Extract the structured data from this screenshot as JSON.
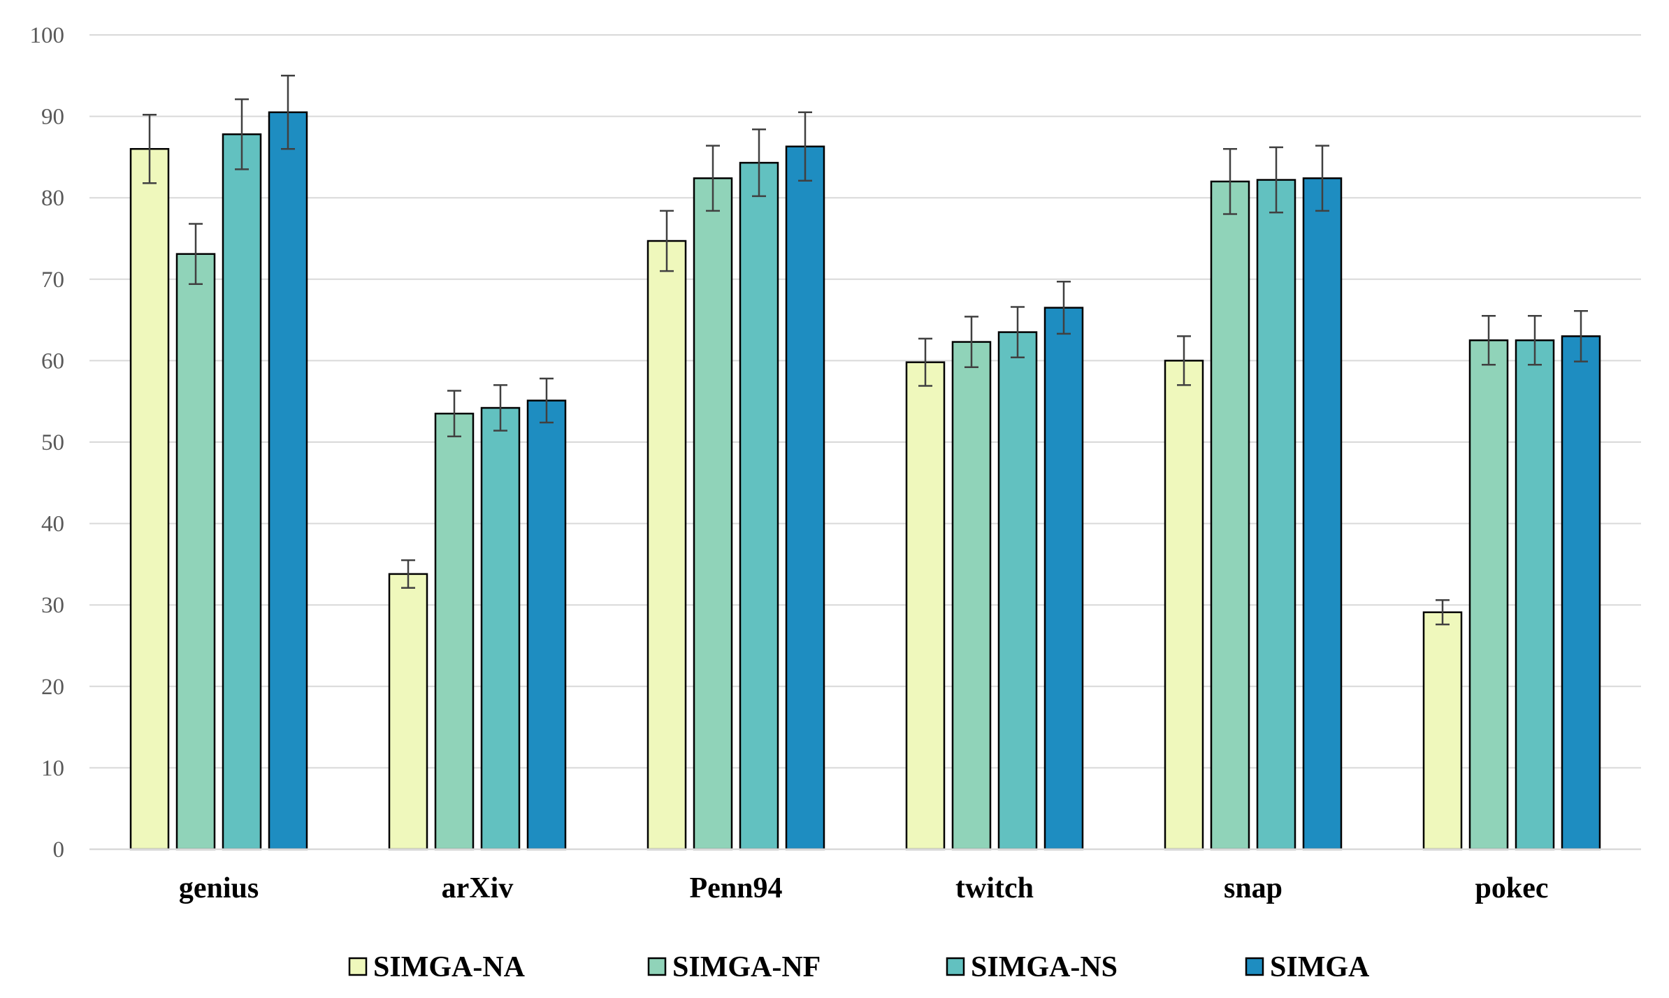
{
  "chart_data": {
    "type": "bar",
    "categories": [
      "genius",
      "arXiv",
      "Penn94",
      "twitch",
      "snap",
      "pokec"
    ],
    "ylim": [
      0,
      100
    ],
    "yticks": [
      0,
      10,
      20,
      30,
      40,
      50,
      60,
      70,
      80,
      90,
      100
    ],
    "grid": true,
    "legend_position": "bottom",
    "series": [
      {
        "name": "SIMGA-NA",
        "color": "#eff8bc",
        "values": [
          86.0,
          33.8,
          74.7,
          59.8,
          60.0,
          29.1
        ],
        "errors": [
          4.2,
          1.7,
          3.7,
          2.9,
          3.0,
          1.5
        ]
      },
      {
        "name": "SIMGA-NF",
        "color": "#90d3b9",
        "values": [
          73.1,
          53.5,
          82.4,
          62.3,
          82.0,
          62.5
        ],
        "errors": [
          3.7,
          2.8,
          4.0,
          3.1,
          4.0,
          3.0
        ]
      },
      {
        "name": "SIMGA-NS",
        "color": "#62c1c0",
        "values": [
          87.8,
          54.2,
          84.3,
          63.5,
          82.2,
          62.5
        ],
        "errors": [
          4.3,
          2.8,
          4.1,
          3.1,
          4.0,
          3.0
        ]
      },
      {
        "name": "SIMGA",
        "color": "#1e8dc1",
        "values": [
          90.5,
          55.1,
          86.3,
          66.5,
          82.4,
          63.0
        ],
        "errors": [
          4.5,
          2.7,
          4.2,
          3.2,
          4.0,
          3.1
        ]
      }
    ]
  }
}
